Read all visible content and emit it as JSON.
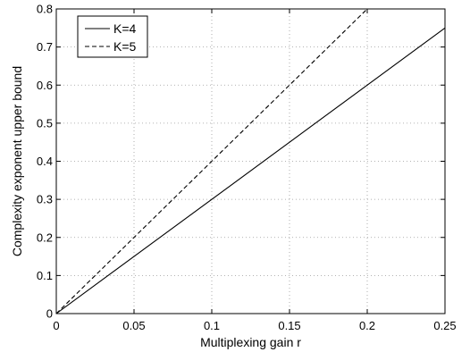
{
  "chart_data": {
    "type": "line",
    "title": "",
    "xlabel": "Multiplexing gain r",
    "ylabel": "Complexity exponent upper bound",
    "xlim": [
      0,
      0.25
    ],
    "ylim": [
      0,
      0.8
    ],
    "xticks": [
      0,
      0.05,
      0.1,
      0.15,
      0.2,
      0.25
    ],
    "xtick_labels": [
      "0",
      "0.05",
      "0.1",
      "0.15",
      "0.2",
      "0.25"
    ],
    "yticks": [
      0,
      0.1,
      0.2,
      0.3,
      0.4,
      0.5,
      0.6,
      0.7,
      0.8
    ],
    "ytick_labels": [
      "0",
      "0.1",
      "0.2",
      "0.3",
      "0.4",
      "0.5",
      "0.6",
      "0.7",
      "0.8"
    ],
    "grid": true,
    "legend_position": "top-left",
    "series": [
      {
        "name": "K=4",
        "style": "solid",
        "color": "#000000",
        "x": [
          0,
          0.25
        ],
        "y": [
          0,
          0.75
        ]
      },
      {
        "name": "K=5",
        "style": "dashed",
        "color": "#000000",
        "x": [
          0,
          0.2
        ],
        "y": [
          0,
          0.8
        ]
      }
    ]
  }
}
